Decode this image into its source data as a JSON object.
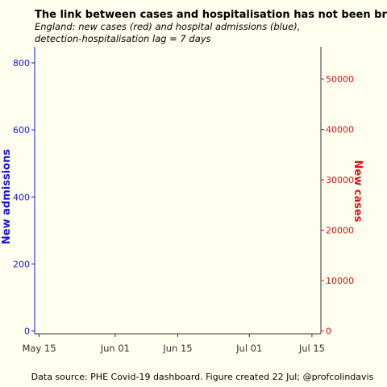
{
  "chart_data": {
    "type": "line",
    "title": "The link between cases and hospitalisation has not been broken",
    "subtitle_lines": [
      "England: new cases (red) and hospital admissions (blue),",
      "detection-hospitalisation lag = 7 days"
    ],
    "caption": "Data source: PHE Covid-19 dashboard. Figure created 22 Jul; @profcolindavis",
    "x_axis": {
      "type": "date",
      "range": [
        "2021-05-14",
        "2021-07-17"
      ],
      "ticks": [
        {
          "date": "2021-05-15",
          "label": "May 15"
        },
        {
          "date": "2021-06-01",
          "label": "Jun 01"
        },
        {
          "date": "2021-06-15",
          "label": "Jun 15"
        },
        {
          "date": "2021-07-01",
          "label": "Jul 01"
        },
        {
          "date": "2021-07-15",
          "label": "Jul 15"
        }
      ]
    },
    "y_left": {
      "label": "New admissions",
      "color": "#1515d6",
      "ylim": [
        0,
        850
      ],
      "ticks": [
        0,
        200,
        400,
        600,
        800
      ],
      "tick_labels": [
        "0",
        "200",
        "400",
        "600",
        "800"
      ]
    },
    "y_right": {
      "label": "New cases",
      "color": "#d01818",
      "ylim": [
        0,
        57000
      ],
      "ticks": [
        0,
        10000,
        20000,
        30000,
        40000,
        50000
      ],
      "tick_labels": [
        "0",
        "10000",
        "20000",
        "30000",
        "40000",
        "50000"
      ]
    },
    "grid": false,
    "series": []
  }
}
